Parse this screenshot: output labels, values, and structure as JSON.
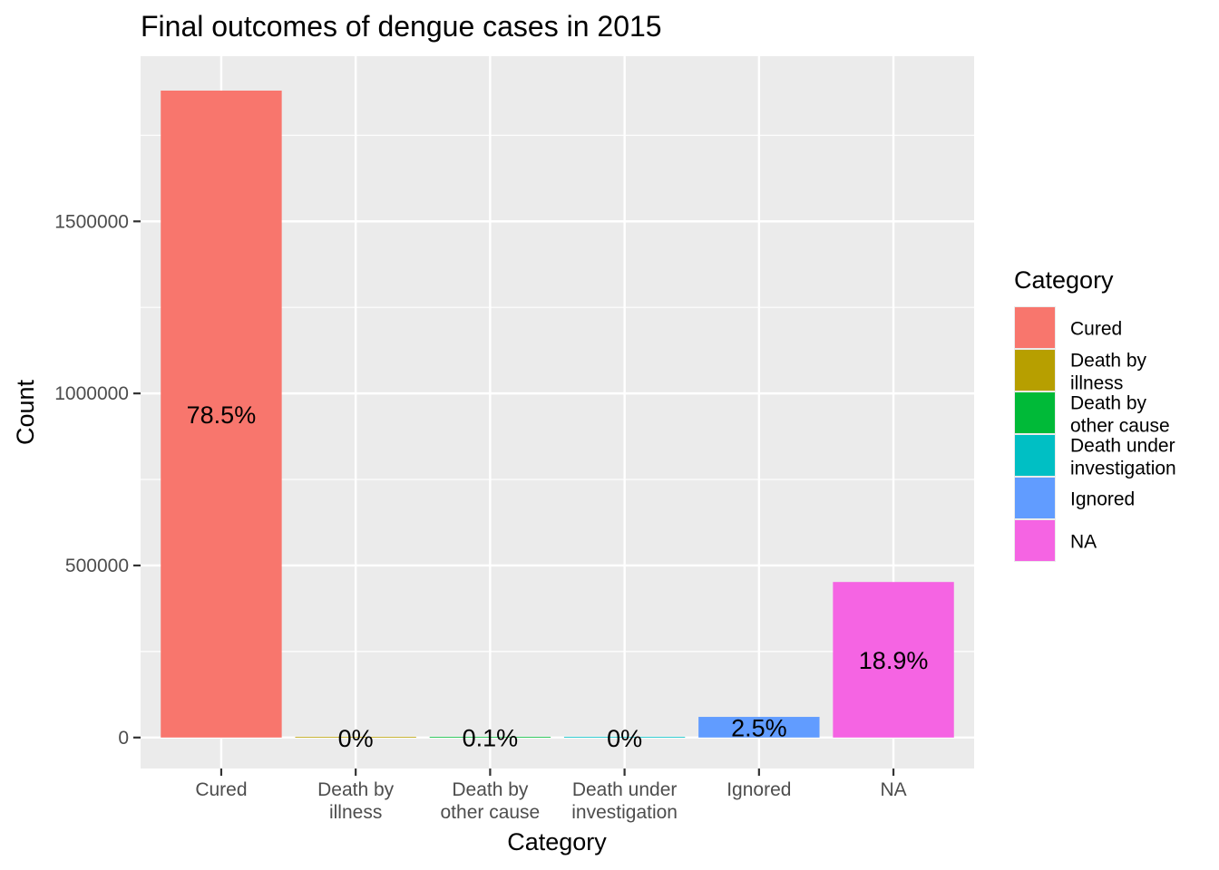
{
  "chart_data": {
    "type": "bar",
    "title": "Final outcomes of dengue cases in 2015",
    "xlabel": "Category",
    "ylabel": "Count",
    "categories": [
      "Cured",
      "Death by illness",
      "Death by other cause",
      "Death under investigation",
      "Ignored",
      "NA"
    ],
    "category_tick_lines": [
      [
        "Cured"
      ],
      [
        "Death by",
        "illness"
      ],
      [
        "Death by",
        "other cause"
      ],
      [
        "Death under",
        "investigation"
      ],
      [
        "Ignored"
      ],
      [
        "NA"
      ]
    ],
    "values": [
      1880000,
      400,
      2000,
      200,
      60000,
      452000
    ],
    "bar_labels": [
      "78.5%",
      "0%",
      "0.1%",
      "0%",
      "2.5%",
      "18.9%"
    ],
    "colors": [
      "#F8766D",
      "#B79F00",
      "#00BA38",
      "#00BFC4",
      "#619CFF",
      "#F564E3"
    ],
    "ylim": [
      -90000,
      1980000
    ],
    "yticks": [
      0,
      500000,
      1000000,
      1500000
    ],
    "ytick_labels": [
      "0",
      "500000",
      "1000000",
      "1500000"
    ],
    "grid": true,
    "panel_background": "#EBEBEB",
    "legend": {
      "title": "Category",
      "position": "right",
      "entries": [
        {
          "lines": [
            "Cured"
          ],
          "color": "#F8766D"
        },
        {
          "lines": [
            "Death by",
            "illness"
          ],
          "color": "#B79F00"
        },
        {
          "lines": [
            "Death by",
            "other cause"
          ],
          "color": "#00BA38"
        },
        {
          "lines": [
            "Death under",
            "investigation"
          ],
          "color": "#00BFC4"
        },
        {
          "lines": [
            "Ignored"
          ],
          "color": "#619CFF"
        },
        {
          "lines": [
            "NA"
          ],
          "color": "#F564E3"
        }
      ]
    }
  }
}
